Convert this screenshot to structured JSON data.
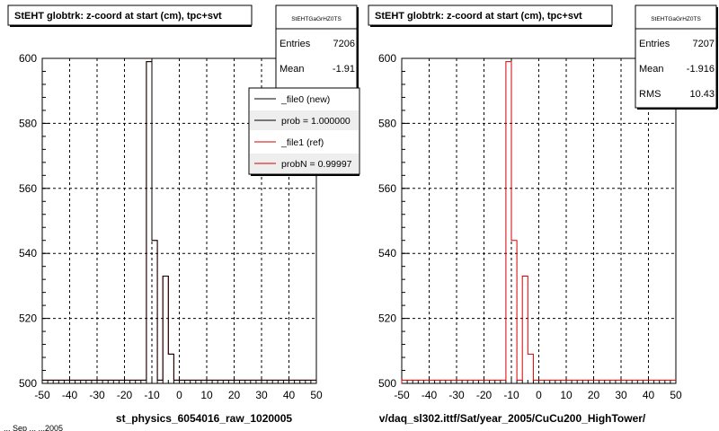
{
  "panels": [
    {
      "title": "StEHT globtrk: z-coord at start (cm), tpc+svt",
      "stats": {
        "name": "StEHTGaGrHZ0TS",
        "rows": [
          {
            "label": "Entries",
            "value": "7206"
          },
          {
            "label": "Mean",
            "value": "-1.91"
          }
        ]
      },
      "legend": {
        "entries": [
          {
            "label": "_file0 (new)",
            "color": "#000000"
          },
          {
            "label": "prob = 1.000000",
            "color": "#000000"
          },
          {
            "label": "_file1 (ref)",
            "color": "#d40000"
          },
          {
            "label": "probN = 0.99997",
            "color": "#d40000"
          }
        ]
      },
      "xlabel": "st_physics_6054016_raw_1020005"
    },
    {
      "title": "StEHT globtrk: z-coord at start (cm), tpc+svt",
      "stats": {
        "name": "StEHTGaGrHZ0TS",
        "rows": [
          {
            "label": "Entries",
            "value": "7207"
          },
          {
            "label": "Mean",
            "value": "-1.916"
          },
          {
            "label": "RMS",
            "value": "10.43"
          }
        ]
      },
      "xlabel": "v/daq_sl302.ittf/Sat/year_2005/CuCu200_HighTower/"
    }
  ],
  "footer_text": "... Sep ... ...2005",
  "colors": {
    "ref": "#d40000",
    "new": "#000000",
    "grid": "#000000"
  },
  "chart_data": [
    {
      "type": "bar",
      "title": "StEHT globtrk: z-coord at start (cm), tpc+svt",
      "xlabel": "st_physics_6054016_raw_1020005",
      "xlim": [
        -50,
        50
      ],
      "ylim": [
        500,
        600
      ],
      "xticks": [
        -50,
        -40,
        -30,
        -20,
        -10,
        0,
        10,
        20,
        30,
        40,
        50
      ],
      "yticks": [
        500,
        520,
        540,
        560,
        580,
        600
      ],
      "grid": true,
      "bin_width": 2,
      "series": [
        {
          "name": "_file1 (ref)",
          "bins": [
            {
              "x0": -50,
              "y": 501
            },
            {
              "x0": -12,
              "y": 599
            },
            {
              "x0": -10,
              "y": 544
            },
            {
              "x0": -8,
              "y": 501
            },
            {
              "x0": -6,
              "y": 533
            },
            {
              "x0": -4,
              "y": 509
            },
            {
              "x0": -2,
              "y": 501
            }
          ]
        },
        {
          "name": "_file0 (new)",
          "bins": [
            {
              "x0": -50,
              "y": 501
            },
            {
              "x0": -12,
              "y": 599
            },
            {
              "x0": -10,
              "y": 544
            },
            {
              "x0": -8,
              "y": 501
            },
            {
              "x0": -6,
              "y": 533
            },
            {
              "x0": -4,
              "y": 509
            },
            {
              "x0": -2,
              "y": 501
            }
          ]
        }
      ]
    },
    {
      "type": "bar",
      "title": "StEHT globtrk: z-coord at start (cm), tpc+svt",
      "xlabel": "v/daq_sl302.ittf/Sat/year_2005/CuCu200_HighTower/",
      "xlim": [
        -50,
        50
      ],
      "ylim": [
        500,
        600
      ],
      "xticks": [
        -50,
        -40,
        -30,
        -20,
        -10,
        0,
        10,
        20,
        30,
        40,
        50
      ],
      "yticks": [
        500,
        520,
        540,
        560,
        580,
        600
      ],
      "grid": true,
      "bin_width": 2,
      "series": [
        {
          "name": "_file1 (ref)",
          "bins": [
            {
              "x0": -50,
              "y": 501
            },
            {
              "x0": -12,
              "y": 599
            },
            {
              "x0": -10,
              "y": 544
            },
            {
              "x0": -8,
              "y": 501
            },
            {
              "x0": -6,
              "y": 533
            },
            {
              "x0": -4,
              "y": 509
            },
            {
              "x0": -2,
              "y": 501
            }
          ]
        }
      ]
    }
  ]
}
